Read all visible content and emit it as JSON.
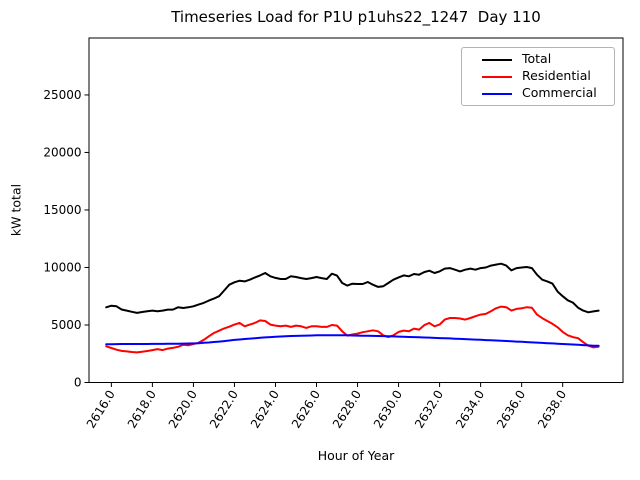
{
  "chart_data": {
    "type": "line",
    "title": "Timeseries Load for P1U p1uhs22_1247  Day 110",
    "xlabel": "Hour of Year",
    "ylabel": "kW total",
    "xlim": [
      2614.91,
      2640.94
    ],
    "ylim": [
      0,
      29950
    ],
    "grid": false,
    "legend_position": "upper right",
    "xticks": [
      2616,
      2618,
      2620,
      2622,
      2624,
      2626,
      2628,
      2630,
      2632,
      2634,
      2636,
      2638
    ],
    "xtick_labels": [
      "2616.0",
      "2618.0",
      "2620.0",
      "2622.0",
      "2624.0",
      "2626.0",
      "2628.0",
      "2630.0",
      "2632.0",
      "2634.0",
      "2636.0",
      "2638.0"
    ],
    "yticks": [
      0,
      5000,
      10000,
      15000,
      20000,
      25000
    ],
    "ytick_labels": [
      "0",
      "5000",
      "10000",
      "15000",
      "20000",
      "25000"
    ],
    "x": [
      2615.75,
      2616.0,
      2616.25,
      2616.5,
      2616.75,
      2617.0,
      2617.25,
      2617.5,
      2617.75,
      2618.0,
      2618.25,
      2618.5,
      2618.75,
      2619.0,
      2619.25,
      2619.5,
      2619.75,
      2620.0,
      2620.25,
      2620.5,
      2620.75,
      2621.0,
      2621.25,
      2621.5,
      2621.75,
      2622.0,
      2622.25,
      2622.5,
      2622.75,
      2623.0,
      2623.25,
      2623.5,
      2623.75,
      2624.0,
      2624.25,
      2624.5,
      2624.75,
      2625.0,
      2625.25,
      2625.5,
      2625.75,
      2626.0,
      2626.25,
      2626.5,
      2626.75,
      2627.0,
      2627.25,
      2627.5,
      2627.75,
      2628.0,
      2628.25,
      2628.5,
      2628.75,
      2629.0,
      2629.25,
      2629.5,
      2629.75,
      2630.0,
      2630.25,
      2630.5,
      2630.75,
      2631.0,
      2631.25,
      2631.5,
      2631.75,
      2632.0,
      2632.25,
      2632.5,
      2632.75,
      2633.0,
      2633.25,
      2633.5,
      2633.75,
      2634.0,
      2634.25,
      2634.5,
      2634.75,
      2635.0,
      2635.25,
      2635.5,
      2635.75,
      2636.0,
      2636.25,
      2636.5,
      2636.75,
      2637.0,
      2637.25,
      2637.5,
      2637.75,
      2638.0,
      2638.25,
      2638.5,
      2638.75,
      2639.0,
      2639.25,
      2639.5,
      2639.75
    ],
    "series": [
      {
        "name": "Total",
        "color": "#000000",
        "values": [
          6540,
          6680,
          6625,
          6350,
          6250,
          6150,
          6050,
          6130,
          6190,
          6250,
          6190,
          6250,
          6340,
          6340,
          6540,
          6480,
          6540,
          6625,
          6770,
          6920,
          7120,
          7290,
          7500,
          8000,
          8500,
          8710,
          8850,
          8790,
          8940,
          9140,
          9310,
          9520,
          9230,
          9090,
          9000,
          9000,
          9230,
          9170,
          9080,
          9000,
          9080,
          9170,
          9080,
          9000,
          9460,
          9290,
          8650,
          8420,
          8590,
          8560,
          8560,
          8740,
          8500,
          8310,
          8360,
          8650,
          8940,
          9140,
          9310,
          9230,
          9430,
          9370,
          9600,
          9720,
          9520,
          9660,
          9900,
          9950,
          9810,
          9660,
          9810,
          9900,
          9810,
          9950,
          10000,
          10160,
          10250,
          10330,
          10160,
          9750,
          9950,
          10000,
          10040,
          9950,
          9370,
          8940,
          8790,
          8600,
          7900,
          7500,
          7150,
          6950,
          6500,
          6250,
          6100,
          6180,
          6250
        ]
      },
      {
        "name": "Residential",
        "color": "#ff0000",
        "values": [
          3150,
          3000,
          2850,
          2750,
          2700,
          2650,
          2620,
          2680,
          2740,
          2820,
          2900,
          2820,
          2950,
          3010,
          3100,
          3280,
          3230,
          3350,
          3450,
          3700,
          4020,
          4300,
          4500,
          4700,
          4850,
          5030,
          5180,
          4890,
          5030,
          5180,
          5400,
          5350,
          5030,
          4950,
          4890,
          4950,
          4830,
          4950,
          4890,
          4750,
          4890,
          4890,
          4830,
          4830,
          5000,
          4950,
          4450,
          4080,
          4170,
          4250,
          4370,
          4450,
          4540,
          4450,
          4100,
          3950,
          4100,
          4400,
          4510,
          4450,
          4690,
          4600,
          4980,
          5180,
          4890,
          5030,
          5470,
          5610,
          5610,
          5560,
          5470,
          5610,
          5760,
          5900,
          5960,
          6200,
          6450,
          6600,
          6550,
          6250,
          6400,
          6450,
          6550,
          6500,
          5900,
          5600,
          5350,
          5100,
          4800,
          4400,
          4100,
          3950,
          3850,
          3500,
          3200,
          3050,
          3120
        ]
      },
      {
        "name": "Commercial",
        "color": "#0000ff",
        "values": [
          3320,
          3330,
          3340,
          3345,
          3350,
          3350,
          3350,
          3350,
          3350,
          3355,
          3360,
          3360,
          3365,
          3370,
          3375,
          3380,
          3390,
          3400,
          3420,
          3450,
          3480,
          3520,
          3560,
          3600,
          3650,
          3700,
          3740,
          3780,
          3820,
          3855,
          3890,
          3920,
          3950,
          3975,
          4000,
          4020,
          4040,
          4055,
          4070,
          4080,
          4090,
          4100,
          4105,
          4110,
          4110,
          4110,
          4105,
          4100,
          4090,
          4080,
          4070,
          4060,
          4050,
          4040,
          4030,
          4020,
          4005,
          3990,
          3975,
          3960,
          3945,
          3930,
          3915,
          3900,
          3880,
          3860,
          3845,
          3830,
          3810,
          3790,
          3770,
          3750,
          3730,
          3710,
          3690,
          3670,
          3650,
          3630,
          3605,
          3580,
          3560,
          3540,
          3515,
          3490,
          3465,
          3440,
          3420,
          3400,
          3375,
          3350,
          3320,
          3300,
          3275,
          3250,
          3225,
          3200,
          3190
        ]
      }
    ]
  }
}
